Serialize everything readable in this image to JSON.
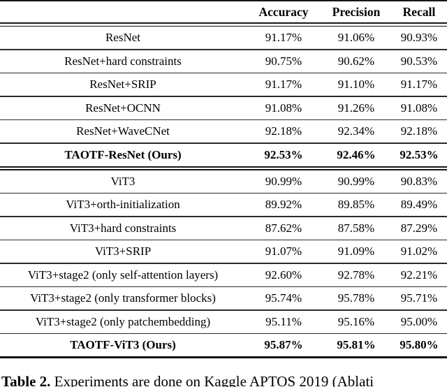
{
  "table": {
    "columns": [
      "Accuracy",
      "Precision",
      "Recall"
    ],
    "sections": [
      {
        "name": "resnet",
        "rows": [
          {
            "model": "ResNet",
            "accuracy": "91.17%",
            "precision": "91.06%",
            "recall": "90.93%",
            "bold": false
          },
          {
            "model": "ResNet+hard constraints",
            "accuracy": "90.75%",
            "precision": "90.62%",
            "recall": "90.53%",
            "bold": false
          },
          {
            "model": "ResNet+SRIP",
            "accuracy": "91.17%",
            "precision": "91.10%",
            "recall": "91.17%",
            "bold": false
          },
          {
            "model": "ResNet+OCNN",
            "accuracy": "91.08%",
            "precision": "91.26%",
            "recall": "91.08%",
            "bold": false
          },
          {
            "model": "ResNet+WaveCNet",
            "accuracy": "92.18%",
            "precision": "92.34%",
            "recall": "92.18%",
            "bold": false
          },
          {
            "model": "TAOTF-ResNet (Ours)",
            "accuracy": "92.53%",
            "precision": "92.46%",
            "recall": "92.53%",
            "bold": true
          }
        ]
      },
      {
        "name": "vit3",
        "rows": [
          {
            "model": "ViT3",
            "accuracy": "90.99%",
            "precision": "90.99%",
            "recall": "90.83%",
            "bold": false
          },
          {
            "model": "ViT3+orth-initialization",
            "accuracy": "89.92%",
            "precision": "89.85%",
            "recall": "89.49%",
            "bold": false
          },
          {
            "model": "ViT3+hard constraints",
            "accuracy": "87.62%",
            "precision": "87.58%",
            "recall": "87.29%",
            "bold": false
          },
          {
            "model": "ViT3+SRIP",
            "accuracy": "91.07%",
            "precision": "91.09%",
            "recall": "91.02%",
            "bold": false
          },
          {
            "model": "ViT3+stage2 (only self-attention layers)",
            "accuracy": "92.60%",
            "precision": "92.78%",
            "recall": "92.21%",
            "bold": false
          },
          {
            "model": "ViT3+stage2 (only transformer blocks)",
            "accuracy": "95.74%",
            "precision": "95.78%",
            "recall": "95.71%",
            "bold": false
          },
          {
            "model": "ViT3+stage2 (only patchembedding)",
            "accuracy": "95.11%",
            "precision": "95.16%",
            "recall": "95.00%",
            "bold": false
          },
          {
            "model": "TAOTF-ViT3 (Ours)",
            "accuracy": "95.87%",
            "precision": "95.81%",
            "recall": "95.80%",
            "bold": true
          }
        ]
      }
    ]
  },
  "caption": {
    "label": "Table 2.",
    "text": "Experiments are done on Kaggle APTOS 2019 (Ablati"
  },
  "colors": {
    "text": "#000000",
    "rule": "#1a1a1a",
    "background": "#ffffff"
  }
}
